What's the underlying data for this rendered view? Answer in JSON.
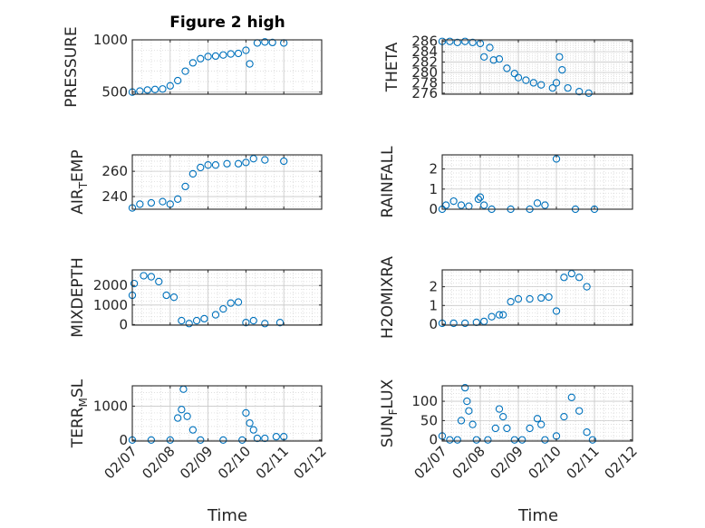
{
  "figure": {
    "title": "Figure 2 high"
  },
  "x_axis": {
    "label": "Time",
    "tick_labels": [
      "02/07",
      "02/08",
      "02/09",
      "02/10",
      "02/11",
      "02/12"
    ],
    "range_days": [
      0,
      5
    ]
  },
  "colors": {
    "marker": "#0072BD",
    "axis": "#262626",
    "grid": "#d4d4d4"
  },
  "chart_data": [
    {
      "type": "scatter",
      "panel": "pressure",
      "ylabel": {
        "main": "PRESSURE",
        "sub": ""
      },
      "ylim": [
        480,
        1000
      ],
      "yticks": [
        500,
        1000
      ],
      "tick_labels": [
        "500",
        "1000"
      ],
      "grid": true,
      "points": [
        [
          0,
          500
        ],
        [
          0.2,
          510
        ],
        [
          0.4,
          520
        ],
        [
          0.6,
          525
        ],
        [
          0.8,
          530
        ],
        [
          1.0,
          560
        ],
        [
          1.2,
          610
        ],
        [
          1.4,
          700
        ],
        [
          1.6,
          780
        ],
        [
          1.8,
          820
        ],
        [
          2.0,
          840
        ],
        [
          2.2,
          845
        ],
        [
          2.4,
          855
        ],
        [
          2.6,
          865
        ],
        [
          2.8,
          870
        ],
        [
          3.0,
          900
        ],
        [
          3.1,
          770
        ],
        [
          3.3,
          970
        ],
        [
          3.5,
          980
        ],
        [
          3.7,
          975
        ],
        [
          4.0,
          970
        ]
      ]
    },
    {
      "type": "scatter",
      "panel": "theta",
      "ylabel": {
        "main": "THETA",
        "sub": ""
      },
      "ylim": [
        275.8,
        286.3
      ],
      "yticks": [
        276,
        278,
        280,
        282,
        284,
        286
      ],
      "tick_labels": [
        "276",
        "278",
        "280",
        "282",
        "284",
        "286"
      ],
      "grid": true,
      "points": [
        [
          0,
          286
        ],
        [
          0.2,
          286
        ],
        [
          0.4,
          285.8
        ],
        [
          0.6,
          286
        ],
        [
          0.8,
          285.8
        ],
        [
          1.0,
          285.6
        ],
        [
          1.1,
          283
        ],
        [
          1.25,
          284.8
        ],
        [
          1.35,
          282.4
        ],
        [
          1.5,
          282.6
        ],
        [
          1.7,
          280.8
        ],
        [
          1.9,
          279.8
        ],
        [
          2.0,
          279
        ],
        [
          2.2,
          278.5
        ],
        [
          2.4,
          278
        ],
        [
          2.6,
          277.6
        ],
        [
          2.9,
          277
        ],
        [
          3.0,
          278
        ],
        [
          3.08,
          283
        ],
        [
          3.15,
          280.5
        ],
        [
          3.3,
          277
        ],
        [
          3.6,
          276.3
        ],
        [
          3.85,
          276
        ]
      ]
    },
    {
      "type": "scatter",
      "panel": "air-temp",
      "ylabel": {
        "main": "AIR",
        "sub": "T",
        "main2": "EMP"
      },
      "ylim": [
        230,
        273
      ],
      "yticks": [
        240,
        260
      ],
      "tick_labels": [
        "240",
        "260"
      ],
      "grid": true,
      "points": [
        [
          0,
          231
        ],
        [
          0.2,
          234
        ],
        [
          0.5,
          235
        ],
        [
          0.8,
          236
        ],
        [
          1.0,
          234
        ],
        [
          1.2,
          238
        ],
        [
          1.4,
          248
        ],
        [
          1.6,
          258
        ],
        [
          1.8,
          263
        ],
        [
          2.0,
          265
        ],
        [
          2.2,
          265
        ],
        [
          2.5,
          266
        ],
        [
          2.8,
          266
        ],
        [
          3.0,
          267
        ],
        [
          3.2,
          270
        ],
        [
          3.5,
          269
        ],
        [
          4.0,
          268
        ]
      ]
    },
    {
      "type": "scatter",
      "panel": "rainfall",
      "ylabel": {
        "main": "RAINFALL",
        "sub": ""
      },
      "ylim": [
        0,
        2.7
      ],
      "yticks": [
        0,
        1,
        2
      ],
      "tick_labels": [
        "0",
        "1",
        "2"
      ],
      "grid": true,
      "points": [
        [
          0,
          0
        ],
        [
          0.1,
          0.2
        ],
        [
          0.3,
          0.4
        ],
        [
          0.5,
          0.2
        ],
        [
          0.7,
          0.15
        ],
        [
          0.95,
          0.5
        ],
        [
          1.0,
          0.6
        ],
        [
          1.1,
          0.2
        ],
        [
          1.3,
          0
        ],
        [
          1.8,
          0
        ],
        [
          2.3,
          0
        ],
        [
          2.5,
          0.3
        ],
        [
          2.7,
          0.2
        ],
        [
          3.0,
          2.5
        ],
        [
          3.5,
          0
        ],
        [
          4.0,
          0
        ]
      ]
    },
    {
      "type": "scatter",
      "panel": "mixdepth",
      "ylabel": {
        "main": "MIXDEPTH",
        "sub": ""
      },
      "ylim": [
        -30,
        2800
      ],
      "yticks": [
        0,
        1000,
        2000
      ],
      "tick_labels": [
        "0",
        "1000",
        "2000"
      ],
      "grid": true,
      "points": [
        [
          0,
          1500
        ],
        [
          0.05,
          2100
        ],
        [
          0.3,
          2500
        ],
        [
          0.5,
          2450
        ],
        [
          0.7,
          2200
        ],
        [
          0.9,
          1500
        ],
        [
          1.1,
          1400
        ],
        [
          1.3,
          200
        ],
        [
          1.5,
          50
        ],
        [
          1.7,
          200
        ],
        [
          1.9,
          300
        ],
        [
          2.2,
          500
        ],
        [
          2.4,
          800
        ],
        [
          2.6,
          1100
        ],
        [
          2.8,
          1150
        ],
        [
          3.0,
          100
        ],
        [
          3.2,
          200
        ],
        [
          3.5,
          50
        ],
        [
          3.9,
          100
        ]
      ]
    },
    {
      "type": "scatter",
      "panel": "h2omixra",
      "ylabel": {
        "main": "H2OMIXRA",
        "sub": ""
      },
      "ylim": [
        -0.05,
        2.9
      ],
      "yticks": [
        0,
        1,
        2
      ],
      "tick_labels": [
        "0",
        "1",
        "2"
      ],
      "grid": true,
      "points": [
        [
          0,
          0.05
        ],
        [
          0.3,
          0.05
        ],
        [
          0.6,
          0.05
        ],
        [
          0.9,
          0.1
        ],
        [
          1.1,
          0.15
        ],
        [
          1.3,
          0.4
        ],
        [
          1.5,
          0.5
        ],
        [
          1.6,
          0.5
        ],
        [
          1.8,
          1.2
        ],
        [
          2.0,
          1.35
        ],
        [
          2.3,
          1.35
        ],
        [
          2.6,
          1.4
        ],
        [
          2.8,
          1.45
        ],
        [
          3.0,
          0.7
        ],
        [
          3.2,
          2.5
        ],
        [
          3.4,
          2.7
        ],
        [
          3.6,
          2.5
        ],
        [
          3.8,
          2.0
        ]
      ]
    },
    {
      "type": "scatter",
      "panel": "terr-msl",
      "ylabel": {
        "main": "TERR",
        "sub": "M",
        "main2": "SL"
      },
      "ylim": [
        -30,
        1600
      ],
      "yticks": [
        0,
        1000
      ],
      "tick_labels": [
        "0",
        "1000"
      ],
      "grid": true,
      "points": [
        [
          0,
          0
        ],
        [
          0.5,
          0
        ],
        [
          1.0,
          0
        ],
        [
          1.2,
          650
        ],
        [
          1.3,
          900
        ],
        [
          1.35,
          1500
        ],
        [
          1.45,
          700
        ],
        [
          1.6,
          300
        ],
        [
          1.8,
          0
        ],
        [
          2.4,
          0
        ],
        [
          2.9,
          0
        ],
        [
          3.0,
          800
        ],
        [
          3.1,
          500
        ],
        [
          3.2,
          300
        ],
        [
          3.3,
          50
        ],
        [
          3.5,
          50
        ],
        [
          3.8,
          100
        ],
        [
          4.0,
          100
        ]
      ]
    },
    {
      "type": "scatter",
      "panel": "sun-flux",
      "ylabel": {
        "main": "SUN",
        "sub": "F",
        "main2": "LUX"
      },
      "ylim": [
        -3,
        140
      ],
      "yticks": [
        0,
        50,
        100
      ],
      "tick_labels": [
        "0",
        "50",
        "100"
      ],
      "grid": true,
      "points": [
        [
          0,
          10
        ],
        [
          0.2,
          0
        ],
        [
          0.4,
          0
        ],
        [
          0.5,
          50
        ],
        [
          0.6,
          135
        ],
        [
          0.65,
          100
        ],
        [
          0.7,
          75
        ],
        [
          0.8,
          40
        ],
        [
          0.9,
          0
        ],
        [
          1.2,
          0
        ],
        [
          1.4,
          30
        ],
        [
          1.5,
          80
        ],
        [
          1.6,
          60
        ],
        [
          1.7,
          30
        ],
        [
          1.9,
          0
        ],
        [
          2.1,
          0
        ],
        [
          2.3,
          30
        ],
        [
          2.5,
          55
        ],
        [
          2.6,
          40
        ],
        [
          2.7,
          0
        ],
        [
          3.0,
          10
        ],
        [
          3.2,
          60
        ],
        [
          3.4,
          110
        ],
        [
          3.6,
          75
        ],
        [
          3.8,
          20
        ],
        [
          3.95,
          0
        ]
      ]
    }
  ]
}
